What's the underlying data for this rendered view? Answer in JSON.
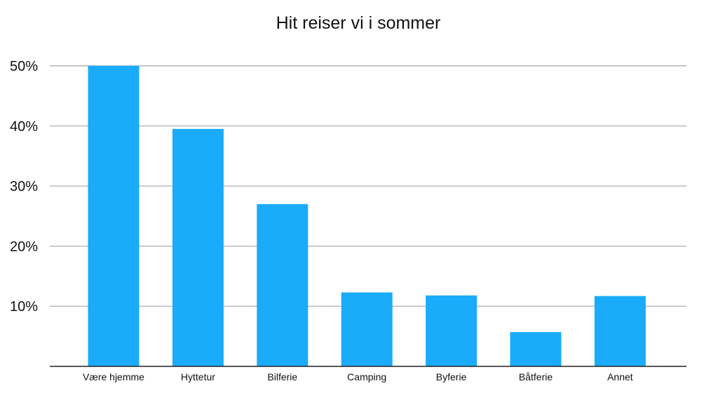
{
  "chart_data": {
    "type": "bar",
    "title": "Hit reiser vi i sommer",
    "categories": [
      "Være hjemme",
      "Hyttetur",
      "Bilferie",
      "Camping",
      "Byferie",
      "Båtferie",
      "Annet"
    ],
    "values": [
      50,
      39.5,
      27,
      12.3,
      11.8,
      5.7,
      11.7
    ],
    "ylim": [
      0,
      50
    ],
    "yticks": [
      10,
      20,
      30,
      40,
      50
    ],
    "ytick_labels": [
      "10%",
      "20%",
      "30%",
      "40%",
      "50%"
    ],
    "grid": true,
    "legend": "none",
    "colors": {
      "bar": "#1aabfa",
      "grid": "#b4b4b4",
      "axis": "#222222",
      "text": "#111111"
    }
  }
}
